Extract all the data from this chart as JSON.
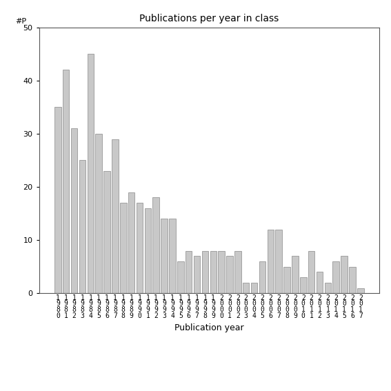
{
  "title": "Publications per year in class",
  "xlabel": "Publication year",
  "ylabel": "#P",
  "ylim": [
    0,
    50
  ],
  "yticks": [
    0,
    10,
    20,
    30,
    40,
    50
  ],
  "bar_color": "#c8c8c8",
  "bar_edgecolor": "#888888",
  "categories": [
    "1\n9\n8\n0",
    "1\n9\n8\n1",
    "1\n9\n8\n2",
    "1\n9\n8\n3",
    "1\n9\n8\n4",
    "1\n9\n8\n5",
    "1\n9\n8\n6",
    "1\n9\n8\n7",
    "1\n9\n8\n8",
    "1\n9\n8\n9",
    "1\n9\n9\n0",
    "1\n9\n9\n1",
    "1\n9\n9\n2",
    "1\n9\n9\n3",
    "1\n9\n9\n4",
    "1\n9\n9\n5",
    "1\n9\n9\n6",
    "1\n9\n9\n7",
    "1\n9\n9\n8",
    "1\n9\n9\n9",
    "2\n0\n0\n0",
    "2\n0\n0\n1",
    "2\n0\n0\n2",
    "2\n0\n0\n3",
    "2\n0\n0\n4",
    "2\n0\n0\n5",
    "2\n0\n0\n6",
    "2\n0\n0\n7",
    "2\n0\n0\n8",
    "2\n0\n0\n9",
    "2\n0\n1\n0",
    "2\n0\n1\n1",
    "2\n0\n1\n2",
    "2\n0\n1\n3",
    "2\n0\n1\n4",
    "2\n0\n1\n5",
    "2\n0\n1\n6",
    "2\n0\n1\n7"
  ],
  "values": [
    35,
    42,
    31,
    25,
    45,
    30,
    23,
    29,
    17,
    19,
    17,
    16,
    18,
    14,
    14,
    6,
    8,
    7,
    8,
    8,
    8,
    7,
    8,
    2,
    2,
    6,
    12,
    12,
    5,
    7,
    3,
    8,
    4,
    2,
    6,
    7,
    5,
    1
  ],
  "title_fontsize": 10,
  "xlabel_fontsize": 9,
  "tick_fontsize": 8,
  "xtick_fontsize": 7
}
